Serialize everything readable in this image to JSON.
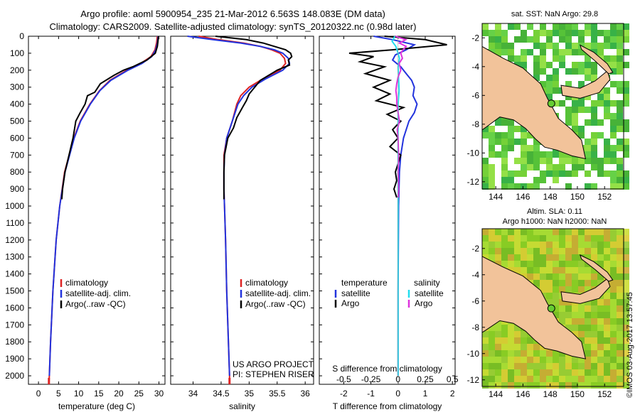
{
  "header": {
    "line1": "Argo profile: aoml 5900954_235 21-Mar-2012 6.563S 148.083E (DM data)",
    "line2": "Climatology: CARS2009. Satellite-adjusted climatology: synTS_20120322.nc (0.98d later)"
  },
  "colors": {
    "climatology": "#dd2222",
    "satellite": "#2233dd",
    "argo": "#000000",
    "sat_salinity": "#22ddee",
    "argo_salinity": "#dd33dd",
    "land": "#f2c39a",
    "sea_green": "#44bb22",
    "map_blank": "#ffffff"
  },
  "chart_data": [
    {
      "type": "line",
      "name": "temperature-profile",
      "xlabel": "temperature (deg C)",
      "ylabel": "",
      "xlim": [
        -2.5,
        31.5
      ],
      "ylim": [
        0,
        2050
      ],
      "y_inverted": true,
      "x_ticks": [
        "0",
        "5",
        "10",
        "15",
        "20",
        "25",
        "30"
      ],
      "y_ticks": [
        "0",
        "100",
        "200",
        "300",
        "400",
        "500",
        "600",
        "700",
        "800",
        "900",
        "1000",
        "1100",
        "1200",
        "1300",
        "1400",
        "1500",
        "1600",
        "1700",
        "1800",
        "1900",
        "2000"
      ],
      "legend": [
        "climatology",
        "satellite-adj. clim.",
        "Argo(..raw -QC)"
      ],
      "series": [
        {
          "name": "climatology",
          "color_key": "climatology",
          "depth": [
            0,
            40,
            80,
            120,
            160,
            200,
            260,
            320,
            400,
            500,
            600,
            800,
            1000,
            1200,
            1500,
            1800,
            2000,
            2050
          ],
          "values": [
            29.6,
            29.4,
            29.0,
            28.0,
            25.5,
            22.0,
            17.8,
            15.2,
            12.8,
            10.4,
            8.8,
            6.5,
            5.3,
            4.4,
            3.6,
            3.0,
            2.7,
            2.6
          ]
        },
        {
          "name": "satellite-adj. clim.",
          "color_key": "satellite",
          "depth": [
            0,
            40,
            80,
            120,
            160,
            200,
            260,
            320,
            400,
            500,
            600,
            800,
            1000,
            1200,
            1500,
            1800,
            2000
          ],
          "values": [
            29.8,
            29.6,
            29.2,
            28.2,
            25.8,
            22.3,
            18.0,
            15.3,
            12.9,
            10.5,
            8.9,
            6.6,
            5.3,
            4.4,
            3.6,
            3.0,
            2.7
          ]
        },
        {
          "name": "Argo(..raw -QC)",
          "color_key": "argo",
          "depth": [
            0,
            20,
            60,
            100,
            140,
            180,
            200,
            230,
            280,
            330,
            350,
            400,
            450,
            500,
            600,
            800,
            900,
            960
          ],
          "values": [
            29.9,
            29.8,
            29.6,
            29.1,
            27.0,
            23.5,
            21.2,
            18.8,
            15.4,
            14.0,
            12.2,
            11.6,
            10.4,
            9.3,
            8.6,
            6.6,
            6.0,
            5.8
          ]
        }
      ]
    },
    {
      "type": "line",
      "name": "salinity-profile",
      "xlabel": "salinity",
      "xlim": [
        33.6,
        36.15
      ],
      "ylim": [
        0,
        2050
      ],
      "y_inverted": true,
      "x_ticks": [
        "34",
        "34.5",
        "35",
        "35.5",
        "36"
      ],
      "legend": [
        "climatology",
        "satellite-adj. clim.",
        "Argo(..raw -QC)"
      ],
      "annotation": [
        "US ARGO PROJECT",
        "PI: STEPHEN RISER"
      ],
      "series": [
        {
          "name": "climatology",
          "color_key": "climatology",
          "depth": [
            0,
            20,
            40,
            60,
            80,
            100,
            130,
            160,
            200,
            250,
            300,
            350,
            400,
            500,
            600,
            700,
            800,
            900,
            1000,
            1200,
            1500,
            2000,
            2050
          ],
          "values": [
            34.1,
            34.45,
            34.9,
            35.2,
            35.4,
            35.55,
            35.63,
            35.65,
            35.55,
            35.25,
            35.0,
            34.85,
            34.78,
            34.7,
            34.6,
            34.55,
            34.55,
            34.55,
            34.56,
            34.58,
            34.6,
            34.65,
            34.65
          ]
        },
        {
          "name": "satellite-adj. clim.",
          "color_key": "satellite",
          "depth": [
            0,
            20,
            40,
            60,
            80,
            100,
            130,
            160,
            200,
            250,
            300,
            350,
            400,
            500,
            600,
            700,
            800,
            900,
            1000,
            1200,
            1500,
            2000
          ],
          "values": [
            33.9,
            34.35,
            34.85,
            35.2,
            35.45,
            35.6,
            35.7,
            35.72,
            35.6,
            35.3,
            35.05,
            34.9,
            34.8,
            34.7,
            34.6,
            34.56,
            34.55,
            34.55,
            34.56,
            34.58,
            34.6,
            34.65
          ]
        },
        {
          "name": "Argo(..raw -QC)",
          "color_key": "argo",
          "depth": [
            0,
            20,
            40,
            60,
            80,
            100,
            120,
            140,
            170,
            200,
            230,
            260,
            300,
            340,
            380,
            420,
            480,
            540,
            600,
            700,
            800,
            900,
            960
          ],
          "values": [
            34.4,
            34.95,
            35.25,
            35.45,
            35.65,
            35.74,
            35.76,
            35.7,
            35.72,
            35.5,
            35.35,
            35.2,
            35.1,
            35.0,
            34.95,
            34.88,
            34.78,
            34.72,
            34.62,
            34.56,
            34.55,
            34.55,
            34.55
          ]
        }
      ]
    },
    {
      "type": "line",
      "name": "difference-profile",
      "xlabel": "T difference from climatology",
      "xlabel_top": "S difference from climatology",
      "xlim": [
        -2.9,
        2.1
      ],
      "ylim": [
        0,
        2050
      ],
      "y_inverted": true,
      "x_ticks": [
        "-2",
        "-1",
        "0",
        "1",
        "2"
      ],
      "x_ticks_s": [
        "-0.5",
        "-0.25",
        "0",
        "0.25",
        "0.5"
      ],
      "legend": [
        "temperature",
        "satellite",
        "Argo",
        "salinity",
        "satellite",
        "Argo"
      ],
      "series": [
        {
          "name": "T satellite",
          "color_key": "satellite",
          "depth": [
            0,
            20,
            50,
            80,
            110,
            140,
            180,
            220,
            260,
            300,
            350,
            400,
            450,
            500,
            600,
            700,
            800,
            1000,
            1500,
            2000
          ],
          "values": [
            -0.9,
            -0.2,
            0.6,
            0.3,
            -0.1,
            -0.2,
            0.1,
            0.3,
            0.5,
            0.6,
            0.55,
            0.7,
            0.6,
            0.4,
            0.2,
            0.1,
            0.05,
            0.02,
            0.0,
            0.0
          ]
        },
        {
          "name": "T Argo",
          "color_key": "argo",
          "depth": [
            0,
            20,
            50,
            80,
            100,
            120,
            150,
            180,
            220,
            260,
            300,
            340,
            380,
            420,
            460,
            500,
            550,
            600,
            650,
            700,
            750,
            800,
            850,
            900,
            950
          ],
          "values": [
            -0.5,
            1.0,
            1.8,
            -0.2,
            -1.8,
            -0.9,
            -1.4,
            -0.5,
            -1.2,
            -0.3,
            -0.9,
            -0.3,
            -0.8,
            0.2,
            -0.4,
            0.1,
            -0.2,
            0.0,
            -0.3,
            0.1,
            0.0,
            -0.1,
            -0.05,
            -0.15,
            -0.05
          ]
        },
        {
          "name": "S satellite",
          "color_key": "sat_salinity",
          "depth": [
            0,
            30,
            60,
            90,
            130,
            180,
            250,
            320,
            400,
            500,
            700,
            1000,
            1500,
            2000
          ],
          "values": [
            -0.12,
            -0.22,
            -0.08,
            -0.02,
            0.05,
            0.0,
            0.02,
            0.04,
            0.0,
            0.0,
            0.0,
            0.0,
            0.0,
            0.0
          ]
        },
        {
          "name": "S Argo",
          "color_key": "argo_salinity",
          "depth": [
            0,
            20,
            40,
            60,
            80,
            100,
            130,
            160,
            200,
            240,
            280,
            320,
            360,
            400,
            450,
            500,
            550,
            600,
            700,
            800,
            900,
            950
          ],
          "values": [
            -0.1,
            0.28,
            0.05,
            0.3,
            0.18,
            0.1,
            0.16,
            0.04,
            0.1,
            0.0,
            -0.05,
            -0.08,
            -0.05,
            -0.05,
            0.0,
            0.05,
            -0.03,
            0.0,
            0.02,
            0.0,
            0.02,
            0.0
          ]
        }
      ]
    },
    {
      "type": "heatmap",
      "name": "sst-map",
      "title": "sat. SST: NaN Argo: 29.8",
      "xlim": [
        143,
        153.4
      ],
      "ylim": [
        -12.5,
        -1
      ],
      "x_ticks": [
        "144",
        "146",
        "148",
        "150",
        "152"
      ],
      "y_ticks": [
        "-2",
        "-4",
        "-6",
        "-8",
        "-10",
        "-12"
      ],
      "marker": {
        "lon": 148.083,
        "lat": -6.563
      }
    },
    {
      "type": "heatmap",
      "name": "sla-map",
      "title_line1": "Altim. SLA: 0.11",
      "title_line2": "Argo h1000: NaN h2000: NaN",
      "xlim": [
        143,
        153.4
      ],
      "ylim": [
        -12.5,
        -0.5
      ],
      "x_ticks": [
        "144",
        "146",
        "148",
        "150",
        "152"
      ],
      "y_ticks": [
        "-2",
        "-4",
        "-6",
        "-8",
        "-10",
        "-12"
      ],
      "marker": {
        "lon": 148.083,
        "lat": -6.563
      }
    }
  ],
  "footer": {
    "stamp": "©IMOS 03-Aug-2017 13:57:45"
  }
}
